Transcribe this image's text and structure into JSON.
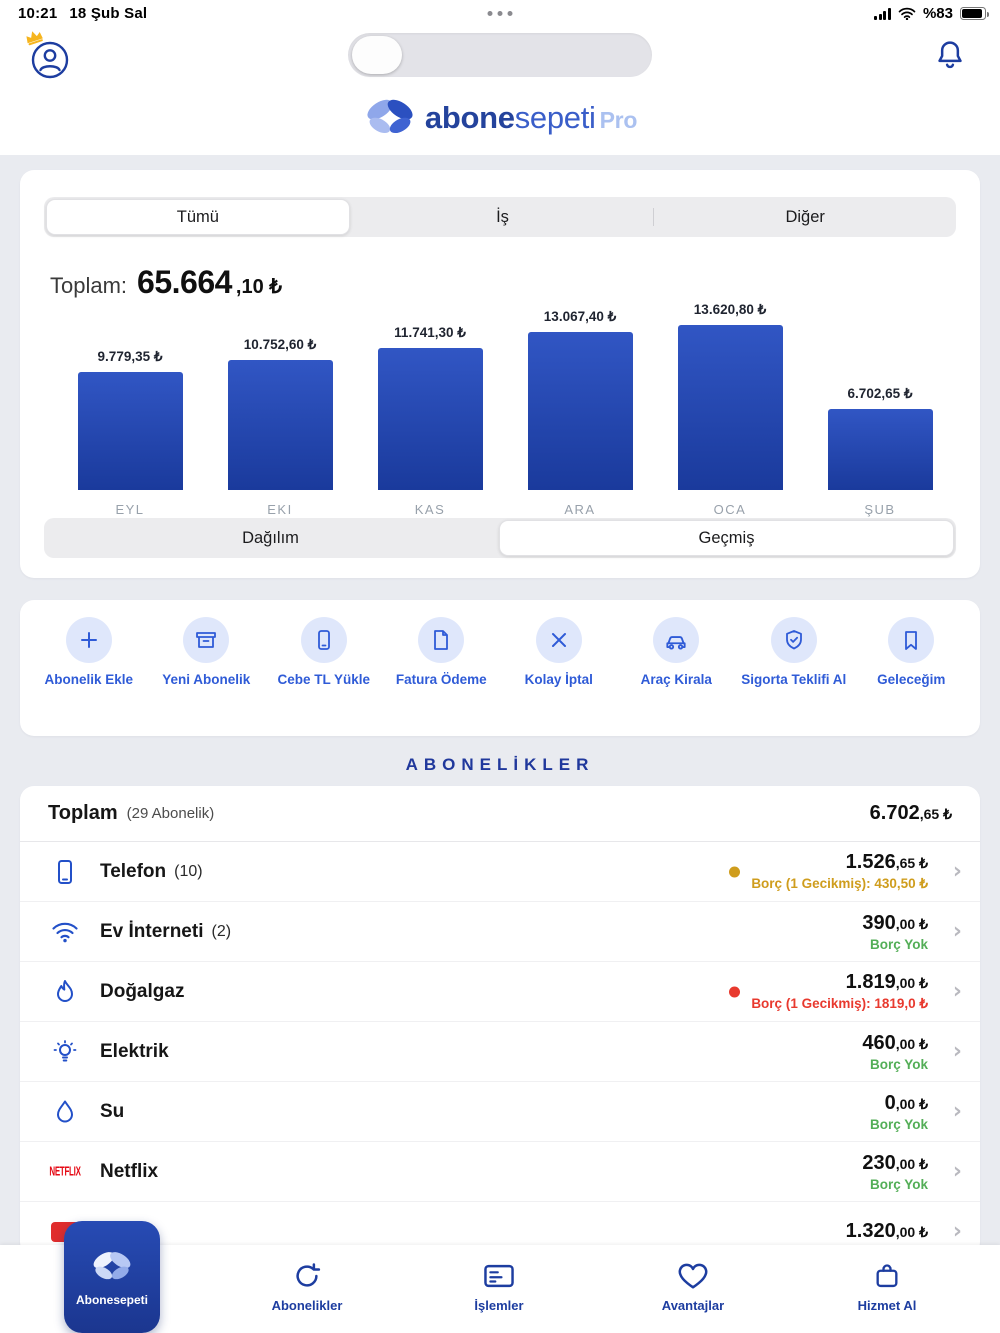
{
  "status_bar": {
    "time": "10:21",
    "date": "18 Şub Sal",
    "battery": "%83"
  },
  "header": {
    "logo_part1": "abone",
    "logo_part2": "sepeti",
    "logo_part3": "Pro"
  },
  "filter_tabs": {
    "items": [
      {
        "label": "Tümü"
      },
      {
        "label": "İş"
      },
      {
        "label": "Diğer"
      }
    ]
  },
  "summary": {
    "label": "Toplam:",
    "amount": "65.664",
    "cents": ",10 ₺"
  },
  "chart_data": {
    "type": "bar",
    "categories": [
      "EYL",
      "EKI",
      "KAS",
      "ARA",
      "OCA",
      "ŞUB"
    ],
    "values": [
      9779.35,
      10752.6,
      11741.3,
      13067.4,
      13620.8,
      6702.65
    ],
    "value_labels": [
      "9.779,35 ₺",
      "10.752,60 ₺",
      "11.741,30 ₺",
      "13.067,40 ₺",
      "13.620,80 ₺",
      "6.702,65 ₺"
    ],
    "title": "Toplam: 65.664,10 ₺",
    "ylim": [
      0,
      13620.8
    ],
    "bar_color_top": "#3156c4",
    "bar_color_bottom": "#1a3a9c",
    "grid": false,
    "legend": "none"
  },
  "history_segment": {
    "items": [
      {
        "label": "Dağılım"
      },
      {
        "label": "Geçmiş"
      }
    ]
  },
  "quick_actions": {
    "items": [
      {
        "label": "Abonelik Ekle",
        "icon": "plus-icon"
      },
      {
        "label": "Yeni Abonelik",
        "icon": "box-icon"
      },
      {
        "label": "Cebe TL Yükle",
        "icon": "phone-icon"
      },
      {
        "label": "Fatura Ödeme",
        "icon": "document-icon"
      },
      {
        "label": "Kolay İptal",
        "icon": "x-icon"
      },
      {
        "label": "Araç Kirala",
        "icon": "car-icon"
      },
      {
        "label": "Sigorta Teklifi Al",
        "icon": "shield-check-icon"
      },
      {
        "label": "Geleceğim",
        "icon": "bookmark-icon"
      }
    ]
  },
  "subscriptions": {
    "section_title": "ABONELİKLER",
    "total_label": "Toplam",
    "total_count": "(29 Abonelik)",
    "total_amount": "6.702",
    "total_cents": ",65 ₺",
    "items": [
      {
        "name": "Telefon",
        "count": "(10)",
        "amount": "1.526",
        "cents": ",65 ₺",
        "status": "Borç (1 Gecikmiş): 430,50 ₺",
        "status_type": "warning",
        "icon": "phone-icon"
      },
      {
        "name": "Ev İnterneti",
        "count": "(2)",
        "amount": "390",
        "cents": ",00 ₺",
        "status": "Borç Yok",
        "status_type": "ok",
        "icon": "wifi-icon"
      },
      {
        "name": "Doğalgaz",
        "count": "",
        "amount": "1.819",
        "cents": ",00 ₺",
        "status": "Borç (1 Gecikmiş): 1819,0 ₺",
        "status_type": "danger",
        "icon": "flame-icon"
      },
      {
        "name": "Elektrik",
        "count": "",
        "amount": "460",
        "cents": ",00 ₺",
        "status": "Borç Yok",
        "status_type": "ok",
        "icon": "bulb-icon"
      },
      {
        "name": "Su",
        "count": "",
        "amount": "0",
        "cents": ",00 ₺",
        "status": "Borç Yok",
        "status_type": "ok",
        "icon": "water-drop-icon"
      },
      {
        "name": "Netflix",
        "count": "",
        "amount": "230",
        "cents": ",00 ₺",
        "status": "Borç Yok",
        "status_type": "ok",
        "icon": "netflix-icon"
      },
      {
        "name": "",
        "count": "",
        "amount": "1.320",
        "cents": ",00 ₺",
        "status": "",
        "status_type": "partial",
        "icon": "red-tile-icon"
      }
    ]
  },
  "bottom_nav": {
    "items": [
      {
        "label": "Abonesepeti",
        "icon": "butterfly-icon",
        "active": true
      },
      {
        "label": "Abonelikler",
        "icon": "refresh-icon",
        "active": false
      },
      {
        "label": "İşlemler",
        "icon": "card-icon",
        "active": false
      },
      {
        "label": "Avantajlar",
        "icon": "heart-icon",
        "active": false
      },
      {
        "label": "Hizmet Al",
        "icon": "bag-icon",
        "active": false
      }
    ]
  },
  "colors": {
    "accent": "#2f5bd7",
    "navy": "#1d3da0",
    "ok": "#53ae57",
    "warning": "#cf9d1d",
    "danger": "#e8392e"
  }
}
